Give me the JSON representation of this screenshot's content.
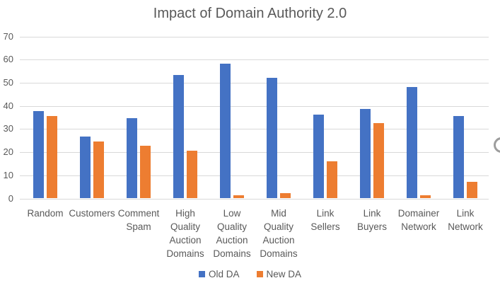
{
  "chart_data": {
    "type": "bar",
    "title": "Impact of Domain Authority 2.0",
    "categories": [
      "Random",
      "Customers",
      "Comment Spam",
      "High Quality Auction Domains",
      "Low Quality Auction Domains",
      "Mid Quality Auction Domains",
      "Link Sellers",
      "Link Buyers",
      "Domainer Network",
      "Link Network"
    ],
    "series": [
      {
        "name": "Old DA",
        "color": "#4472C4",
        "values": [
          37.8,
          26.7,
          34.7,
          53.3,
          58.3,
          52.2,
          36.2,
          38.6,
          48.2,
          35.6
        ]
      },
      {
        "name": "New DA",
        "color": "#ED7D31",
        "values": [
          35.5,
          24.5,
          22.8,
          20.6,
          1.3,
          2.2,
          16.1,
          32.6,
          1.4,
          7.3
        ]
      }
    ],
    "ylim": [
      0,
      70
    ],
    "yticks": [
      0,
      10,
      20,
      30,
      40,
      50,
      60,
      70
    ],
    "grid": true,
    "legend_position": "bottom",
    "xlabel": "",
    "ylabel": ""
  },
  "styles": {
    "gridline_color": "#D9D9D9",
    "axis_text_color": "#595959",
    "title_color": "#595959",
    "background": "#FFFFFF"
  }
}
